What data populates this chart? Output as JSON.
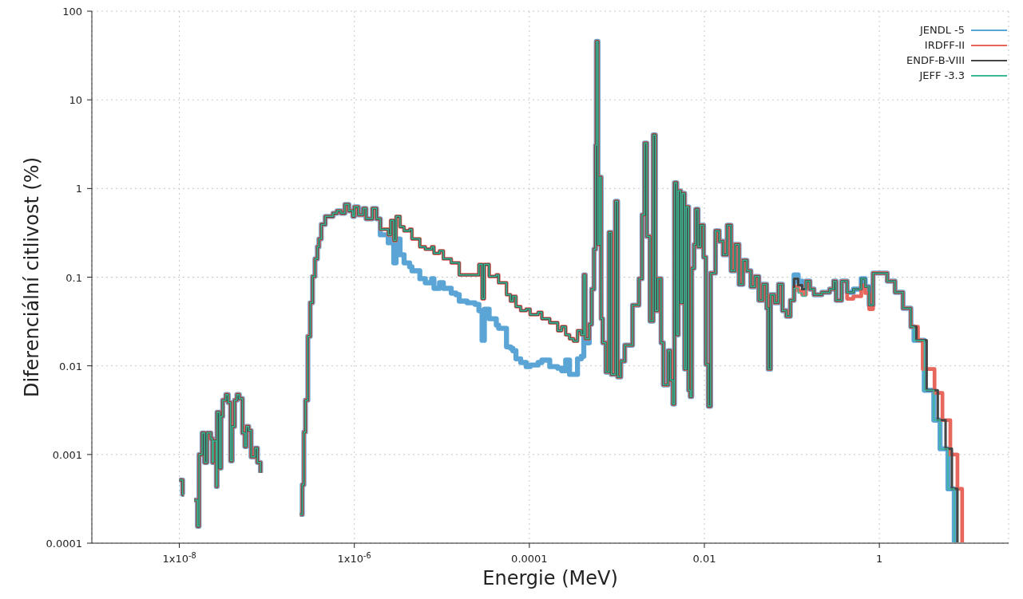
{
  "chart_data": {
    "type": "step",
    "xlabel": "Energie (MeV)",
    "ylabel": "Diferenciální citlivost (%)",
    "log": "xy",
    "grid": true,
    "legend": "top right",
    "xlim": [
      1e-09,
      30
    ],
    "ylim": [
      0.0001,
      100
    ],
    "xticks": [
      {
        "value": 1e-08,
        "label": "1x10$^{-8}$"
      },
      {
        "value": 1e-06,
        "label": "1x10$^{-6}$"
      },
      0.0001,
      0.01,
      1
    ],
    "yticks": [
      0.0001,
      0.001,
      0.01,
      0.1,
      1,
      10,
      100
    ],
    "x": [
      1e-08,
      1.09e-08,
      1.13e-08,
      1.23e-08,
      1.48e-08,
      1.61e-08,
      1.68e-08,
      1.82e-08,
      1.94e-08,
      2.07e-08,
      2.29e-08,
      2.39e-08,
      2.44e-08,
      2.65e-08,
      2.7e-08,
      2.88e-08,
      3e-08,
      3.13e-08,
      3.4e-08,
      3.62e-08,
      3.85e-08,
      4.02e-08,
      4.28e-08,
      4.55e-08,
      4.84e-08,
      5.26e-08,
      5.6e-08,
      5.83e-08,
      6.21e-08,
      6.61e-08,
      7.33e-08,
      7.8e-08,
      8.47e-08,
      1.09e-07,
      2.39e-07,
      2.54e-07,
      2.65e-07,
      2.76e-07,
      2.94e-07,
      3.13e-07,
      3.33e-07,
      3.55e-07,
      3.78e-07,
      3.94e-07,
      4.19e-07,
      4.65e-07,
      5.71e-07,
      6.34e-07,
      7.03e-07,
      7.8e-07,
      8.65e-07,
      9.6e-07,
      1e-06,
      1.11e-06,
      1.26e-06,
      1.36e-06,
      1.61e-06,
      1.79e-06,
      1.98e-06,
      2.44e-06,
      2.6e-06,
      2.82e-06,
      3e-06,
      3.33e-06,
      3.7e-06,
      4.28e-06,
      4.55e-06,
      5.6e-06,
      6.47e-06,
      7.64e-06,
      8.13e-06,
      9.4e-06,
      1.04e-05,
      1.28e-05,
      1.45e-05,
      1.58e-05,
      1.94e-05,
      2.39e-05,
      2.65e-05,
      2.88e-05,
      3.06e-05,
      3.47e-05,
      4.19e-05,
      4.45e-05,
      5.48e-05,
      6.08e-05,
      6.47e-05,
      7.03e-05,
      7.96e-05,
      9.2e-05,
      0.000102,
      0.000126,
      0.000139,
      0.000171,
      0.000211,
      0.000234,
      0.00026,
      0.000288,
      0.00032,
      0.000355,
      0.000393,
      0.000419,
      0.000436,
      0.000484,
      0.000515,
      0.000548,
      0.000571,
      0.000583,
      0.000608,
      0.000634,
      0.000661,
      0.000689,
      0.000748,
      0.000813,
      0.000865,
      0.00096,
      0.00102,
      0.00111,
      0.00123,
      0.00151,
      0.00179,
      0.00194,
      0.00207,
      0.0022,
      0.00239,
      0.0026,
      0.00276,
      0.00294,
      0.0032,
      0.0034,
      0.00385,
      0.0041,
      0.00436,
      0.00455,
      0.00484,
      0.00504,
      0.00537,
      0.0056,
      0.00595,
      0.00621,
      0.00661,
      0.00689,
      0.00718,
      0.00764,
      0.00796,
      0.00847,
      0.00902,
      0.0098,
      0.0104,
      0.0111,
      0.0118,
      0.0134,
      0.0148,
      0.0164,
      0.0182,
      0.0202,
      0.0224,
      0.0249,
      0.0276,
      0.0306,
      0.034,
      0.0378,
      0.0419,
      0.0465,
      0.0515,
      0.0537,
      0.0571,
      0.0634,
      0.0703,
      0.078,
      0.0865,
      0.096,
      0.106,
      0.118,
      0.131,
      0.145,
      0.161,
      0.179,
      0.22,
      0.27,
      0.3,
      0.32,
      0.37,
      0.428,
      0.505,
      0.56,
      0.621,
      0.689,
      0.764,
      0.847,
      1.09,
      1.23,
      1.51,
      1.86,
      2.29,
      2.49,
      2.65,
      2.76,
      3.13,
      3.26,
      3.47,
      4.19,
      4.27,
      4.65,
      4.94,
      5.26,
      5.71,
      6.08,
      6.47,
      6.74,
      7.18,
      7.8,
      8.83
    ],
    "series": [
      {
        "name": "JENDL -5",
        "color": "#5aa5d6",
        "values": [
          0.000515,
          0.000355,
          0.000355,
          null,
          0.000306,
          0.000155,
          0.001,
          0.00175,
          0.000813,
          0.00175,
          0.00151,
          0.000813,
          0.00142,
          0.000436,
          0.003,
          0.000703,
          0.0027,
          0.0041,
          0.00474,
          0.00385,
          0.000847,
          0.00207,
          0.0041,
          0.00474,
          0.00427,
          0.00175,
          0.00123,
          0.00207,
          0.00186,
          0.00094,
          0.00118,
          0.000813,
          0.000621,
          null,
          0.000211,
          0.000455,
          0.00179,
          0.0041,
          0.0215,
          0.0515,
          0.102,
          0.161,
          0.22,
          0.27,
          0.393,
          0.484,
          0.526,
          0.56,
          0.526,
          0.661,
          0.56,
          0.484,
          0.621,
          0.505,
          0.596,
          0.455,
          0.596,
          0.455,
          0.3,
          0.244,
          0.27,
          0.145,
          0.27,
          0.179,
          0.145,
          0.131,
          0.118,
          0.096,
          0.0865,
          0.096,
          0.0748,
          0.0865,
          0.0748,
          0.0661,
          0.0634,
          0.0537,
          0.0515,
          0.0494,
          0.0419,
          0.0194,
          0.0436,
          0.034,
          0.0288,
          0.0265,
          0.0164,
          0.0158,
          0.0148,
          0.012,
          0.0109,
          0.0098,
          0.0102,
          0.0109,
          0.0116,
          0.0098,
          0.0094,
          0.0088,
          0.0116,
          0.008,
          0.008,
          0.012,
          0.0128,
          0.106,
          0.0182,
          0.0294,
          0.0733,
          0.207,
          3.06,
          45.5,
          0.234,
          1.34,
          0.034,
          0.0182,
          0.0085,
          0.32,
          0.008,
          0.718,
          0.0075,
          0.0113,
          0.0171,
          0.0484,
          0.096,
          0.505,
          3.26,
          0.288,
          0.032,
          4.02,
          0.0419,
          0.096,
          0.0182,
          0.0061,
          0.0148,
          0.0069,
          0.0037,
          1.16,
          0.0224,
          0.94,
          0.0515,
          0.88,
          0.0092,
          0.621,
          0.0053,
          0.0045,
          0.126,
          0.234,
          0.583,
          0.22,
          0.385,
          0.168,
          0.0104,
          0.0035,
          0.111,
          0.333,
          0.254,
          0.179,
          0.385,
          0.118,
          0.234,
          0.083,
          0.155,
          0.118,
          0.078,
          0.102,
          0.0548,
          0.083,
          0.0446,
          0.0092,
          0.0634,
          0.0515,
          0.083,
          0.0419,
          0.0362,
          0.0548,
          0.106,
          0.0902,
          0.0813,
          0.0902,
          0.0733,
          0.0634,
          0.0675,
          0.0733,
          0.0902,
          0.0548,
          0.0902,
          0.0675,
          0.0733,
          0.0733,
          0.096,
          0.078,
          0.0484,
          0.111,
          0.111,
          0.0902,
          0.0675,
          0.0446,
          0.0276,
          0.0194,
          0.0194,
          0.0194,
          0.0194,
          0.0053,
          0.0053,
          0.00244,
          0.00244,
          0.00244,
          0.00116,
          0.00116,
          0.00116,
          0.00041,
          0.00041,
          0.00041,
          0.000102,
          null,
          null
        ]
      },
      {
        "name": "IRDFF-II",
        "color": "#e8675d",
        "values": [
          0.000515,
          0.000355,
          0.000355,
          null,
          0.000306,
          0.000155,
          0.001,
          0.00175,
          0.000813,
          0.00175,
          0.00151,
          0.000813,
          0.00142,
          0.000436,
          0.003,
          0.000703,
          0.0027,
          0.0041,
          0.00474,
          0.00385,
          0.000847,
          0.00207,
          0.0041,
          0.00474,
          0.00427,
          0.00175,
          0.00123,
          0.00207,
          0.00186,
          0.00094,
          0.00118,
          0.000813,
          0.000621,
          null,
          0.000211,
          0.000455,
          0.00179,
          0.0041,
          0.0215,
          0.0515,
          0.102,
          0.161,
          0.22,
          0.27,
          0.393,
          0.484,
          0.526,
          0.56,
          0.526,
          0.661,
          0.56,
          0.484,
          0.621,
          0.505,
          0.596,
          0.455,
          0.596,
          0.455,
          0.347,
          0.3,
          0.437,
          0.259,
          0.484,
          0.37,
          0.333,
          0.347,
          0.27,
          0.22,
          0.207,
          0.22,
          0.186,
          0.198,
          0.161,
          0.145,
          0.145,
          0.106,
          0.106,
          0.106,
          0.139,
          0.0571,
          0.139,
          0.102,
          0.106,
          0.0865,
          0.0634,
          0.0537,
          0.0608,
          0.0465,
          0.0419,
          0.0436,
          0.0378,
          0.0402,
          0.034,
          0.0306,
          0.0249,
          0.0276,
          0.0224,
          0.0202,
          0.019,
          0.0249,
          0.0224,
          0.106,
          0.0202,
          0.0294,
          0.0733,
          0.207,
          3.06,
          45.5,
          0.234,
          1.34,
          0.034,
          0.0182,
          0.0085,
          0.32,
          0.008,
          0.718,
          0.0075,
          0.0113,
          0.0171,
          0.0484,
          0.096,
          0.505,
          3.26,
          0.288,
          0.032,
          4.02,
          0.0419,
          0.096,
          0.0182,
          0.0061,
          0.0148,
          0.0069,
          0.0037,
          1.16,
          0.0224,
          0.94,
          0.0515,
          0.88,
          0.0092,
          0.621,
          0.0053,
          0.0045,
          0.126,
          0.234,
          0.583,
          0.22,
          0.385,
          0.168,
          0.0104,
          0.0035,
          0.111,
          0.333,
          0.254,
          0.179,
          0.385,
          0.118,
          0.234,
          0.083,
          0.155,
          0.118,
          0.078,
          0.102,
          0.0548,
          0.083,
          0.0446,
          0.0092,
          0.0634,
          0.0515,
          0.083,
          0.0419,
          0.0362,
          0.0548,
          0.078,
          0.0703,
          0.0634,
          0.0902,
          0.0733,
          0.0634,
          0.0675,
          0.0733,
          0.0902,
          0.0548,
          0.0902,
          0.0571,
          0.0608,
          0.0608,
          0.0813,
          0.0661,
          0.0436,
          0.111,
          0.111,
          0.0902,
          0.0675,
          0.0446,
          0.0276,
          0.0276,
          0.0276,
          0.0194,
          0.0092,
          0.0092,
          0.0092,
          0.0092,
          0.00494,
          0.00494,
          0.00494,
          0.00244,
          0.00244,
          0.00244,
          0.001,
          0.001,
          0.001,
          0.00041,
          0.000102
        ]
      },
      {
        "name": "ENDF-B-VIII",
        "color": "#454545",
        "values": [
          0.000515,
          0.000355,
          0.000355,
          null,
          0.000306,
          0.000155,
          0.001,
          0.00175,
          0.000813,
          0.00175,
          0.00151,
          0.000813,
          0.00142,
          0.000436,
          0.003,
          0.000703,
          0.0027,
          0.0041,
          0.00474,
          0.00385,
          0.000847,
          0.00207,
          0.0041,
          0.00474,
          0.00427,
          0.00175,
          0.00123,
          0.00207,
          0.00186,
          0.00094,
          0.00118,
          0.000813,
          0.000621,
          null,
          0.000211,
          0.000455,
          0.00179,
          0.0041,
          0.0215,
          0.0515,
          0.102,
          0.161,
          0.22,
          0.27,
          0.393,
          0.484,
          0.526,
          0.56,
          0.526,
          0.661,
          0.56,
          0.484,
          0.621,
          0.505,
          0.596,
          0.455,
          0.596,
          0.455,
          0.347,
          0.3,
          0.437,
          0.259,
          0.484,
          0.37,
          0.333,
          0.347,
          0.27,
          0.22,
          0.207,
          0.22,
          0.186,
          0.198,
          0.161,
          0.145,
          0.145,
          0.106,
          0.106,
          0.106,
          0.139,
          0.0571,
          0.139,
          0.102,
          0.106,
          0.0865,
          0.0634,
          0.0537,
          0.0608,
          0.0465,
          0.0419,
          0.0436,
          0.0378,
          0.0402,
          0.034,
          0.0306,
          0.0249,
          0.0276,
          0.0224,
          0.0202,
          0.019,
          0.0249,
          0.0224,
          0.106,
          0.0202,
          0.0294,
          0.0733,
          0.207,
          3.06,
          45.5,
          0.234,
          1.34,
          0.034,
          0.0182,
          0.0085,
          0.32,
          0.008,
          0.718,
          0.0075,
          0.0113,
          0.0171,
          0.0484,
          0.096,
          0.505,
          3.26,
          0.288,
          0.032,
          4.02,
          0.0419,
          0.096,
          0.0182,
          0.0061,
          0.0148,
          0.0069,
          0.0037,
          1.16,
          0.0224,
          0.94,
          0.0515,
          0.88,
          0.0092,
          0.621,
          0.0053,
          0.0045,
          0.126,
          0.234,
          0.583,
          0.22,
          0.385,
          0.168,
          0.0104,
          0.0035,
          0.111,
          0.333,
          0.254,
          0.179,
          0.385,
          0.118,
          0.234,
          0.083,
          0.155,
          0.118,
          0.078,
          0.102,
          0.0548,
          0.083,
          0.0446,
          0.0092,
          0.0634,
          0.0515,
          0.083,
          0.0419,
          0.0362,
          0.0548,
          0.096,
          0.0813,
          0.0733,
          0.0902,
          0.0733,
          0.0634,
          0.0675,
          0.0733,
          0.0902,
          0.0548,
          0.0902,
          0.0675,
          0.0733,
          0.0733,
          0.096,
          0.078,
          0.0484,
          0.111,
          0.111,
          0.0902,
          0.0675,
          0.0446,
          0.0276,
          0.0276,
          0.0194,
          0.0194,
          0.0194,
          0.0194,
          0.0053,
          0.0053,
          0.0053,
          0.00244,
          0.00244,
          0.00244,
          0.00116,
          0.00116,
          0.00116,
          0.00041,
          0.00041,
          0.000102,
          null
        ]
      },
      {
        "name": "JEFF -3.3",
        "color": "#3cb894",
        "values": [
          0.000515,
          0.000355,
          0.000355,
          null,
          0.000306,
          0.000155,
          0.001,
          0.00175,
          0.000813,
          0.00175,
          0.00151,
          0.000813,
          0.00142,
          0.000436,
          0.003,
          0.000703,
          0.0027,
          0.0041,
          0.00474,
          0.00385,
          0.000847,
          0.00207,
          0.0041,
          0.00474,
          0.00427,
          0.00175,
          0.00123,
          0.00207,
          0.00186,
          0.00094,
          0.00118,
          0.000813,
          0.000621,
          null,
          0.000211,
          0.000455,
          0.00179,
          0.0041,
          0.0215,
          0.0515,
          0.102,
          0.161,
          0.22,
          0.27,
          0.393,
          0.484,
          0.526,
          0.56,
          0.526,
          0.661,
          0.56,
          0.484,
          0.621,
          0.505,
          0.596,
          0.455,
          0.596,
          0.455,
          0.347,
          0.3,
          0.437,
          0.259,
          0.484,
          0.37,
          0.333,
          0.347,
          0.27,
          0.22,
          0.207,
          0.22,
          0.186,
          0.198,
          0.161,
          0.145,
          0.145,
          0.106,
          0.106,
          0.106,
          0.139,
          0.0571,
          0.139,
          0.102,
          0.106,
          0.0865,
          0.0634,
          0.0537,
          0.0608,
          0.0465,
          0.0419,
          0.0436,
          0.0378,
          0.0402,
          0.034,
          0.0306,
          0.0249,
          0.0276,
          0.0224,
          0.0202,
          0.019,
          0.0249,
          0.0224,
          0.106,
          0.0202,
          0.0294,
          0.0733,
          0.207,
          3.06,
          45.5,
          0.234,
          1.34,
          0.034,
          0.0182,
          0.0085,
          0.32,
          0.008,
          0.718,
          0.0075,
          0.0113,
          0.0171,
          0.0484,
          0.096,
          0.505,
          3.26,
          0.288,
          0.032,
          4.02,
          0.0419,
          0.096,
          0.0182,
          0.0061,
          0.0148,
          0.0069,
          0.0037,
          1.16,
          0.0224,
          0.94,
          0.0515,
          0.88,
          0.0092,
          0.621,
          0.0053,
          0.0045,
          0.126,
          0.234,
          0.583,
          0.22,
          0.385,
          0.168,
          0.0104,
          0.0035,
          0.111,
          0.333,
          0.254,
          0.179,
          0.385,
          0.118,
          0.234,
          0.083,
          0.155,
          0.118,
          0.078,
          0.102,
          0.0548,
          0.083,
          0.0446,
          0.0092,
          0.0634,
          0.0515,
          0.083,
          0.0419,
          0.0362,
          0.0548,
          0.0748,
          0.0661,
          0.0608,
          0.0902,
          0.0733,
          0.0634,
          0.0675,
          0.0733,
          0.0902,
          0.0548,
          0.0902,
          0.0675,
          0.0733,
          0.0733,
          0.096,
          0.078,
          0.0484,
          0.111,
          0.111,
          0.0902,
          0.0675,
          0.0446,
          0.0276,
          0.0194,
          0.0194,
          0.0194,
          0.0194,
          0.0053,
          0.0053,
          0.00244,
          0.00244,
          0.00244,
          0.00116,
          0.00116,
          0.00116,
          0.00041,
          0.00041,
          0.00041,
          0.000102,
          null,
          null
        ]
      }
    ]
  }
}
